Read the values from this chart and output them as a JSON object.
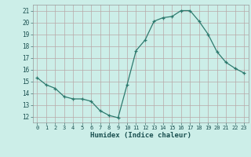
{
  "x": [
    0,
    1,
    2,
    3,
    4,
    5,
    6,
    7,
    8,
    9,
    10,
    11,
    12,
    13,
    14,
    15,
    16,
    17,
    18,
    19,
    20,
    21,
    22,
    23
  ],
  "y": [
    15.3,
    14.7,
    14.4,
    13.7,
    13.5,
    13.5,
    13.3,
    12.5,
    12.1,
    11.9,
    14.7,
    17.6,
    18.5,
    20.1,
    20.4,
    20.5,
    21.0,
    21.0,
    20.1,
    19.0,
    17.5,
    16.6,
    16.1,
    15.7
  ],
  "line_color": "#2d7a6e",
  "marker": "+",
  "bg_color": "#cceee8",
  "grid_color": "#b8a8a8",
  "xlabel": "Humidex (Indice chaleur)",
  "ylabel_ticks": [
    12,
    13,
    14,
    15,
    16,
    17,
    18,
    19,
    20,
    21
  ],
  "xlim": [
    -0.5,
    23.5
  ],
  "ylim": [
    11.5,
    21.5
  ]
}
